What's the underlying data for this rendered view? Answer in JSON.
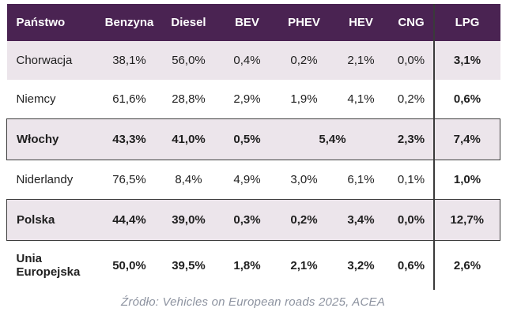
{
  "chart_data": {
    "type": "table",
    "columns": [
      {
        "key": "panstwo",
        "label": "Państwo"
      },
      {
        "key": "benzyna",
        "label": "Benzyna"
      },
      {
        "key": "diesel",
        "label": "Diesel"
      },
      {
        "key": "bev",
        "label": "BEV"
      },
      {
        "key": "phev",
        "label": "PHEV"
      },
      {
        "key": "hev",
        "label": "HEV"
      },
      {
        "key": "cng",
        "label": "CNG"
      },
      {
        "key": "lpg",
        "label": "LPG"
      }
    ],
    "rows": [
      {
        "key": "chorwacja",
        "country": "Chorwacja",
        "shaded": true,
        "emphasis": false,
        "bold": false,
        "cells": [
          {
            "text": "38,1%"
          },
          {
            "text": "56,0%"
          },
          {
            "text": "0,4%"
          },
          {
            "text": "0,2%"
          },
          {
            "text": "2,1%"
          },
          {
            "text": "0,0%"
          },
          {
            "text": "3,1%"
          }
        ]
      },
      {
        "key": "niemcy",
        "country": "Niemcy",
        "shaded": false,
        "emphasis": false,
        "bold": false,
        "cells": [
          {
            "text": "61,6%"
          },
          {
            "text": "28,8%"
          },
          {
            "text": "2,9%"
          },
          {
            "text": "1,9%"
          },
          {
            "text": "4,1%"
          },
          {
            "text": "0,2%"
          },
          {
            "text": "0,6%"
          }
        ]
      },
      {
        "key": "wlochy",
        "country": "Włochy",
        "shaded": true,
        "emphasis": true,
        "bold": true,
        "cells": [
          {
            "text": "43,3%"
          },
          {
            "text": "41,0%"
          },
          {
            "text": "0,5%"
          },
          {
            "text": "5,4%",
            "span": 2
          },
          {
            "text": "2,3%"
          },
          {
            "text": "7,4%"
          }
        ]
      },
      {
        "key": "niderlandy",
        "country": "Niderlandy",
        "shaded": false,
        "emphasis": false,
        "bold": false,
        "cells": [
          {
            "text": "76,5%"
          },
          {
            "text": "8,4%"
          },
          {
            "text": "4,9%"
          },
          {
            "text": "3,0%"
          },
          {
            "text": "6,1%"
          },
          {
            "text": "0,1%"
          },
          {
            "text": "1,0%"
          }
        ]
      },
      {
        "key": "polska",
        "country": "Polska",
        "shaded": true,
        "emphasis": true,
        "bold": true,
        "cells": [
          {
            "text": "44,4%"
          },
          {
            "text": "39,0%"
          },
          {
            "text": "0,3%"
          },
          {
            "text": "0,2%"
          },
          {
            "text": "3,4%"
          },
          {
            "text": "0,0%"
          },
          {
            "text": "12,7%"
          }
        ]
      },
      {
        "key": "unia-europejska",
        "country": "Unia Europejska",
        "shaded": false,
        "emphasis": false,
        "bold": true,
        "cells": [
          {
            "text": "50,0%"
          },
          {
            "text": "39,5%"
          },
          {
            "text": "1,8%"
          },
          {
            "text": "2,1%"
          },
          {
            "text": "3,2%"
          },
          {
            "text": "0,6%"
          },
          {
            "text": "2,6%"
          }
        ]
      }
    ],
    "merged_cell_note": "Włochy row shows a single 5,4% value spanning the PHEV and HEV columns"
  },
  "caption": "Źródło: Vehicles on European roads 2025, ACEA",
  "colors": {
    "header_bg": "#4a2352",
    "header_text": "#ffffff",
    "shaded_row_bg": "#ece5eb",
    "emphasis_border": "#3d3d3d",
    "lpg_separator": "#3a3a3a",
    "body_text": "#1f1f1f",
    "caption_text": "#8d93a0"
  }
}
